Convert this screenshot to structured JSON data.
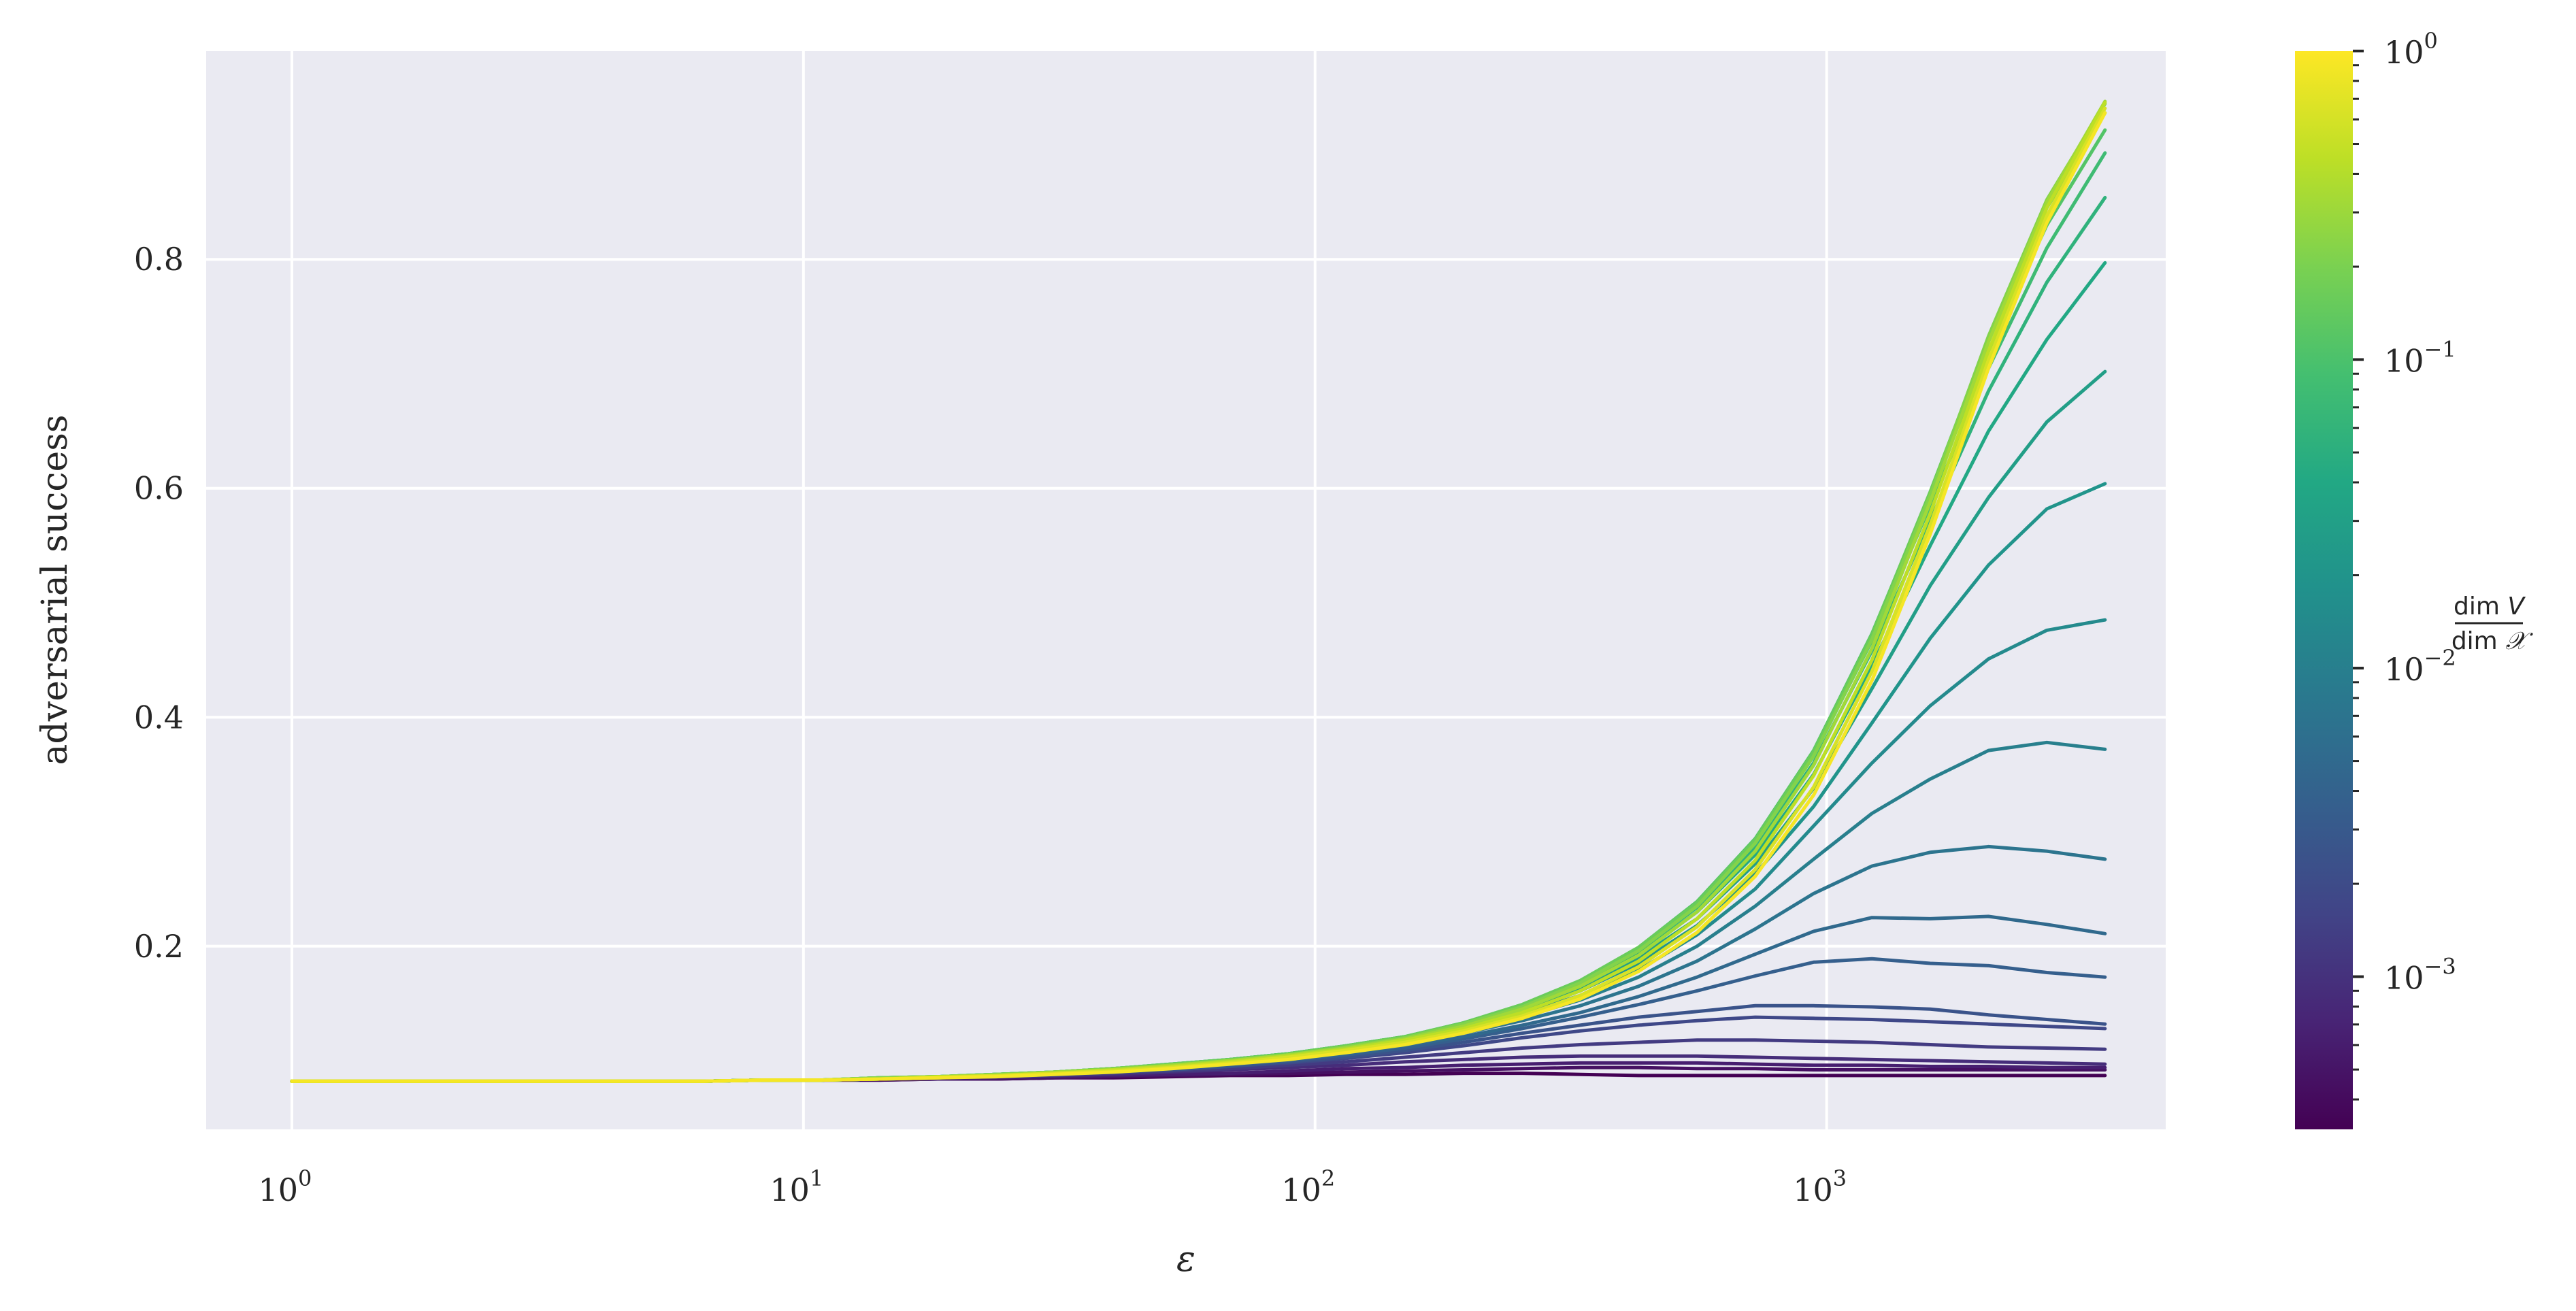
{
  "chart_data": {
    "type": "line",
    "xlabel": "ε",
    "ylabel": "adversarial success",
    "xscale": "log",
    "xlim": [
      0.68,
      4600
    ],
    "ylim": [
      0.04,
      0.982
    ],
    "grid": true,
    "background": "#EAEAF2",
    "x_ticks": [
      {
        "base": "10",
        "exp": "0",
        "value": 1
      },
      {
        "base": "10",
        "exp": "1",
        "value": 10
      },
      {
        "base": "10",
        "exp": "2",
        "value": 100
      },
      {
        "base": "10",
        "exp": "3",
        "value": 1000
      }
    ],
    "y_ticks": [
      {
        "label": "0.2",
        "value": 0.2
      },
      {
        "label": "0.4",
        "value": 0.4
      },
      {
        "label": "0.6",
        "value": 0.6
      },
      {
        "label": "0.8",
        "value": 0.8
      }
    ],
    "colorbar": {
      "label": "dim V / dim 𝒳",
      "scale": "log",
      "colormap": "viridis",
      "range": [
        0.00032,
        1
      ],
      "ticks": [
        {
          "base": "10",
          "exp": "0",
          "value": 1
        },
        {
          "base": "10",
          "exp": "−1",
          "value": 0.1
        },
        {
          "base": "10",
          "exp": "−2",
          "value": 0.01
        },
        {
          "base": "10",
          "exp": "−3",
          "value": 0.001
        }
      ]
    },
    "x": [
      1,
      1.3,
      1.7,
      2.2,
      2.9,
      3.8,
      4.9,
      6.4,
      8.3,
      10.8,
      14.1,
      18.3,
      23.8,
      31,
      40.3,
      52.4,
      68.2,
      88.7,
      115,
      150,
      195,
      254,
      330,
      429,
      558,
      725,
      943,
      1226,
      1594,
      2072,
      2694,
      3500
    ],
    "series": [
      {
        "ratio": 0.00032,
        "values": [
          0.082,
          0.082,
          0.082,
          0.082,
          0.082,
          0.082,
          0.082,
          0.082,
          0.083,
          0.083,
          0.083,
          0.084,
          0.084,
          0.085,
          0.085,
          0.086,
          0.087,
          0.087,
          0.088,
          0.088,
          0.089,
          0.089,
          0.088,
          0.087,
          0.087,
          0.087,
          0.087,
          0.087,
          0.087,
          0.087,
          0.087,
          0.087
        ]
      },
      {
        "ratio": 0.00045,
        "values": [
          0.082,
          0.082,
          0.082,
          0.082,
          0.082,
          0.082,
          0.082,
          0.082,
          0.083,
          0.083,
          0.083,
          0.084,
          0.084,
          0.085,
          0.086,
          0.087,
          0.088,
          0.089,
          0.09,
          0.091,
          0.092,
          0.093,
          0.094,
          0.094,
          0.093,
          0.093,
          0.092,
          0.092,
          0.092,
          0.092,
          0.092,
          0.092
        ]
      },
      {
        "ratio": 0.00063,
        "values": [
          0.082,
          0.082,
          0.082,
          0.082,
          0.082,
          0.082,
          0.082,
          0.082,
          0.083,
          0.083,
          0.084,
          0.084,
          0.085,
          0.086,
          0.087,
          0.088,
          0.089,
          0.091,
          0.093,
          0.094,
          0.096,
          0.097,
          0.098,
          0.098,
          0.098,
          0.097,
          0.096,
          0.096,
          0.095,
          0.095,
          0.094,
          0.094
        ]
      },
      {
        "ratio": 0.00089,
        "values": [
          0.082,
          0.082,
          0.082,
          0.082,
          0.082,
          0.082,
          0.082,
          0.082,
          0.083,
          0.083,
          0.084,
          0.085,
          0.086,
          0.087,
          0.088,
          0.09,
          0.092,
          0.094,
          0.096,
          0.099,
          0.101,
          0.103,
          0.104,
          0.104,
          0.104,
          0.103,
          0.102,
          0.101,
          0.1,
          0.099,
          0.098,
          0.097
        ]
      },
      {
        "ratio": 0.00126,
        "values": [
          0.082,
          0.082,
          0.082,
          0.082,
          0.082,
          0.082,
          0.082,
          0.082,
          0.083,
          0.083,
          0.084,
          0.085,
          0.086,
          0.087,
          0.089,
          0.091,
          0.093,
          0.096,
          0.099,
          0.103,
          0.107,
          0.111,
          0.114,
          0.116,
          0.118,
          0.118,
          0.117,
          0.116,
          0.114,
          0.112,
          0.111,
          0.11
        ]
      },
      {
        "ratio": 0.00178,
        "values": [
          0.082,
          0.082,
          0.082,
          0.082,
          0.082,
          0.082,
          0.082,
          0.082,
          0.083,
          0.083,
          0.084,
          0.085,
          0.086,
          0.088,
          0.09,
          0.092,
          0.095,
          0.098,
          0.102,
          0.107,
          0.113,
          0.12,
          0.126,
          0.131,
          0.135,
          0.138,
          0.137,
          0.136,
          0.134,
          0.132,
          0.13,
          0.128
        ]
      },
      {
        "ratio": 0.0025,
        "values": [
          0.082,
          0.082,
          0.082,
          0.082,
          0.082,
          0.082,
          0.082,
          0.082,
          0.083,
          0.083,
          0.084,
          0.085,
          0.086,
          0.088,
          0.09,
          0.092,
          0.095,
          0.099,
          0.103,
          0.109,
          0.116,
          0.124,
          0.131,
          0.138,
          0.143,
          0.148,
          0.148,
          0.147,
          0.145,
          0.14,
          0.136,
          0.132
        ]
      },
      {
        "ratio": 0.00355,
        "values": [
          0.082,
          0.082,
          0.082,
          0.082,
          0.082,
          0.082,
          0.082,
          0.082,
          0.083,
          0.083,
          0.084,
          0.085,
          0.087,
          0.088,
          0.09,
          0.093,
          0.096,
          0.1,
          0.105,
          0.111,
          0.119,
          0.128,
          0.138,
          0.149,
          0.161,
          0.174,
          0.186,
          0.189,
          0.185,
          0.183,
          0.177,
          0.173
        ]
      },
      {
        "ratio": 0.005,
        "values": [
          0.082,
          0.082,
          0.082,
          0.082,
          0.082,
          0.082,
          0.082,
          0.082,
          0.083,
          0.083,
          0.084,
          0.085,
          0.087,
          0.089,
          0.091,
          0.094,
          0.097,
          0.101,
          0.106,
          0.113,
          0.121,
          0.131,
          0.142,
          0.156,
          0.173,
          0.193,
          0.213,
          0.225,
          0.224,
          0.226,
          0.219,
          0.211
        ]
      },
      {
        "ratio": 0.0071,
        "values": [
          0.082,
          0.082,
          0.082,
          0.082,
          0.082,
          0.082,
          0.082,
          0.082,
          0.083,
          0.083,
          0.084,
          0.085,
          0.087,
          0.089,
          0.091,
          0.094,
          0.098,
          0.102,
          0.108,
          0.115,
          0.124,
          0.135,
          0.148,
          0.165,
          0.187,
          0.215,
          0.246,
          0.27,
          0.282,
          0.287,
          0.283,
          0.276
        ]
      },
      {
        "ratio": 0.01,
        "values": [
          0.082,
          0.082,
          0.082,
          0.082,
          0.082,
          0.082,
          0.082,
          0.082,
          0.083,
          0.083,
          0.084,
          0.085,
          0.087,
          0.089,
          0.091,
          0.095,
          0.099,
          0.103,
          0.109,
          0.117,
          0.126,
          0.138,
          0.153,
          0.173,
          0.2,
          0.235,
          0.276,
          0.316,
          0.346,
          0.371,
          0.378,
          0.372
        ]
      },
      {
        "ratio": 0.0141,
        "values": [
          0.082,
          0.082,
          0.082,
          0.082,
          0.082,
          0.082,
          0.082,
          0.082,
          0.083,
          0.083,
          0.084,
          0.086,
          0.087,
          0.089,
          0.092,
          0.095,
          0.099,
          0.104,
          0.11,
          0.118,
          0.128,
          0.141,
          0.157,
          0.179,
          0.21,
          0.25,
          0.305,
          0.36,
          0.41,
          0.451,
          0.476,
          0.485
        ]
      },
      {
        "ratio": 0.02,
        "values": [
          0.082,
          0.082,
          0.082,
          0.082,
          0.082,
          0.082,
          0.082,
          0.082,
          0.083,
          0.083,
          0.084,
          0.086,
          0.087,
          0.09,
          0.092,
          0.096,
          0.1,
          0.105,
          0.111,
          0.119,
          0.13,
          0.143,
          0.161,
          0.185,
          0.218,
          0.263,
          0.322,
          0.395,
          0.469,
          0.533,
          0.582,
          0.604
        ]
      },
      {
        "ratio": 0.0282,
        "values": [
          0.082,
          0.082,
          0.082,
          0.082,
          0.082,
          0.082,
          0.082,
          0.082,
          0.083,
          0.083,
          0.084,
          0.086,
          0.088,
          0.09,
          0.093,
          0.096,
          0.1,
          0.105,
          0.112,
          0.12,
          0.131,
          0.145,
          0.164,
          0.19,
          0.224,
          0.272,
          0.338,
          0.425,
          0.515,
          0.592,
          0.658,
          0.702
        ]
      },
      {
        "ratio": 0.04,
        "values": [
          0.082,
          0.082,
          0.082,
          0.082,
          0.082,
          0.082,
          0.082,
          0.082,
          0.083,
          0.083,
          0.085,
          0.086,
          0.088,
          0.09,
          0.093,
          0.096,
          0.101,
          0.106,
          0.112,
          0.12,
          0.131,
          0.146,
          0.166,
          0.193,
          0.23,
          0.28,
          0.35,
          0.445,
          0.55,
          0.65,
          0.73,
          0.797
        ]
      },
      {
        "ratio": 0.056,
        "values": [
          0.082,
          0.082,
          0.082,
          0.082,
          0.082,
          0.082,
          0.082,
          0.082,
          0.083,
          0.083,
          0.085,
          0.086,
          0.088,
          0.09,
          0.093,
          0.097,
          0.101,
          0.106,
          0.113,
          0.121,
          0.132,
          0.147,
          0.168,
          0.196,
          0.234,
          0.287,
          0.36,
          0.458,
          0.572,
          0.685,
          0.78,
          0.854
        ]
      },
      {
        "ratio": 0.079,
        "values": [
          0.082,
          0.082,
          0.082,
          0.082,
          0.082,
          0.082,
          0.082,
          0.082,
          0.083,
          0.083,
          0.085,
          0.086,
          0.088,
          0.09,
          0.093,
          0.097,
          0.101,
          0.106,
          0.113,
          0.121,
          0.133,
          0.148,
          0.169,
          0.198,
          0.237,
          0.292,
          0.367,
          0.467,
          0.585,
          0.705,
          0.81,
          0.893
        ]
      },
      {
        "ratio": 0.112,
        "values": [
          0.082,
          0.082,
          0.082,
          0.082,
          0.082,
          0.082,
          0.082,
          0.082,
          0.083,
          0.083,
          0.085,
          0.086,
          0.088,
          0.09,
          0.093,
          0.097,
          0.101,
          0.106,
          0.113,
          0.121,
          0.133,
          0.149,
          0.17,
          0.199,
          0.239,
          0.294,
          0.371,
          0.473,
          0.595,
          0.72,
          0.83,
          0.913
        ]
      },
      {
        "ratio": 0.158,
        "values": [
          0.082,
          0.082,
          0.082,
          0.082,
          0.082,
          0.082,
          0.082,
          0.082,
          0.083,
          0.083,
          0.085,
          0.086,
          0.088,
          0.09,
          0.093,
          0.097,
          0.101,
          0.106,
          0.113,
          0.121,
          0.133,
          0.149,
          0.17,
          0.199,
          0.238,
          0.293,
          0.37,
          0.472,
          0.597,
          0.73,
          0.845,
          0.928
        ]
      },
      {
        "ratio": 0.224,
        "values": [
          0.082,
          0.082,
          0.082,
          0.082,
          0.082,
          0.082,
          0.082,
          0.082,
          0.083,
          0.083,
          0.085,
          0.086,
          0.088,
          0.09,
          0.093,
          0.096,
          0.1,
          0.105,
          0.112,
          0.12,
          0.132,
          0.147,
          0.168,
          0.196,
          0.235,
          0.29,
          0.366,
          0.468,
          0.594,
          0.733,
          0.852,
          0.936
        ]
      },
      {
        "ratio": 0.316,
        "values": [
          0.082,
          0.082,
          0.082,
          0.082,
          0.082,
          0.082,
          0.082,
          0.082,
          0.083,
          0.083,
          0.084,
          0.086,
          0.087,
          0.09,
          0.092,
          0.096,
          0.1,
          0.105,
          0.111,
          0.119,
          0.13,
          0.145,
          0.165,
          0.192,
          0.23,
          0.283,
          0.358,
          0.46,
          0.588,
          0.728,
          0.85,
          0.938
        ]
      },
      {
        "ratio": 0.447,
        "values": [
          0.082,
          0.082,
          0.082,
          0.082,
          0.082,
          0.082,
          0.082,
          0.082,
          0.083,
          0.083,
          0.084,
          0.086,
          0.087,
          0.089,
          0.092,
          0.095,
          0.099,
          0.104,
          0.11,
          0.118,
          0.128,
          0.142,
          0.161,
          0.187,
          0.224,
          0.275,
          0.349,
          0.45,
          0.578,
          0.72,
          0.845,
          0.937
        ]
      },
      {
        "ratio": 0.63,
        "values": [
          0.082,
          0.082,
          0.082,
          0.082,
          0.082,
          0.082,
          0.082,
          0.082,
          0.083,
          0.083,
          0.084,
          0.085,
          0.087,
          0.089,
          0.091,
          0.094,
          0.098,
          0.103,
          0.109,
          0.116,
          0.126,
          0.139,
          0.157,
          0.182,
          0.217,
          0.267,
          0.339,
          0.44,
          0.568,
          0.712,
          0.838,
          0.932
        ]
      },
      {
        "ratio": 0.9,
        "values": [
          0.082,
          0.082,
          0.082,
          0.082,
          0.082,
          0.082,
          0.082,
          0.082,
          0.083,
          0.083,
          0.084,
          0.085,
          0.086,
          0.088,
          0.09,
          0.093,
          0.097,
          0.101,
          0.107,
          0.114,
          0.124,
          0.137,
          0.154,
          0.178,
          0.212,
          0.261,
          0.332,
          0.432,
          0.56,
          0.705,
          0.832,
          0.928
        ]
      }
    ]
  }
}
